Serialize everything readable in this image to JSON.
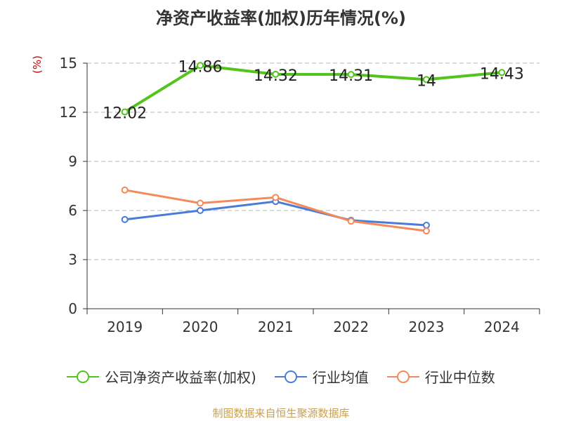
{
  "title": "净资产收益率(加权)历年情况(%)",
  "source": "制图数据来自恒生聚源数据库",
  "chart_data": {
    "type": "line",
    "title": "净资产收益率(加权)历年情况(%)",
    "xlabel": "",
    "ylabel": "(%)",
    "categories": [
      "2019",
      "2020",
      "2021",
      "2022",
      "2023",
      "2024"
    ],
    "ylim": [
      0,
      15
    ],
    "yticks": [
      0,
      3,
      6,
      9,
      12,
      15
    ],
    "grid": true,
    "legend_position": "bottom",
    "series": [
      {
        "name": "公司净资产收益率(加权)",
        "color": "#52c41a",
        "values": [
          12.02,
          14.86,
          14.32,
          14.31,
          14,
          14.43
        ],
        "labels": [
          "12.02",
          "14.86",
          "14.32",
          "14.31",
          "14",
          "14.43"
        ]
      },
      {
        "name": "行业均值",
        "color": "#4a7bd9",
        "values": [
          5.45,
          6.0,
          6.55,
          5.4,
          5.1,
          null
        ]
      },
      {
        "name": "行业中位数",
        "color": "#f5895a",
        "values": [
          7.25,
          6.45,
          6.8,
          5.35,
          4.75,
          null
        ]
      }
    ]
  }
}
